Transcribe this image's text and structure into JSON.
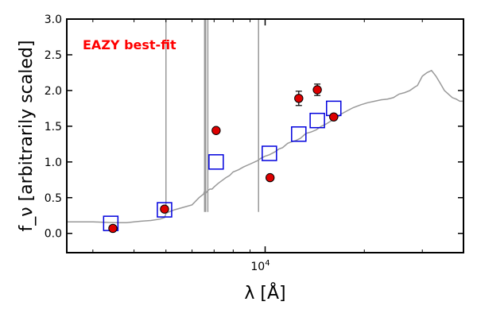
{
  "chart_data": {
    "type": "scatter",
    "title": "",
    "xlabel": "λ [Å]",
    "ylabel": "f_ν [arbitrarily scaled]",
    "xscale": "log",
    "xlim": [
      2500,
      40000
    ],
    "ylim": [
      -0.27,
      3.0
    ],
    "yticks": [
      0.0,
      0.5,
      1.0,
      1.5,
      2.0,
      2.5,
      3.0
    ],
    "ytick_labels": [
      "0.0",
      "0.5",
      "1.0",
      "1.5",
      "2.0",
      "2.5",
      "3.0"
    ],
    "xtick_major": [
      10000
    ],
    "xtick_major_label": "10^4",
    "annotation": "EAZY best-fit",
    "grid": false,
    "legend": "none",
    "colors": {
      "sed_line": "#999999",
      "observed_fill": "#dd0000",
      "model_box": "#0000dd",
      "annotation": "#ff0000"
    },
    "series": [
      {
        "kind": "line",
        "x": [
          2500,
          3000,
          3500,
          3800,
          4000,
          4200,
          4500,
          4800,
          4950,
          5000,
          5100,
          5300,
          5600,
          6000,
          6300,
          6500,
          6560,
          6600,
          6700,
          6800,
          6900,
          7000,
          7200,
          7400,
          7600,
          7800,
          8000,
          8300,
          8600,
          9000,
          9300,
          9500,
          9700,
          10000,
          10300,
          10700,
          11000,
          11300,
          11700,
          12000,
          12400,
          12800,
          13300,
          13800,
          14300,
          14800,
          15300,
          15800,
          16400,
          17000,
          17800,
          18500,
          19500,
          20500,
          21500,
          22500,
          23500,
          24500,
          25500,
          26500,
          27500,
          28500,
          29000,
          30000,
          31000,
          32000,
          33000,
          34000,
          35000,
          36000,
          37000,
          38000,
          39000,
          40000
        ],
        "y": [
          0.16,
          0.16,
          0.15,
          0.15,
          0.16,
          0.17,
          0.18,
          0.2,
          0.22,
          0.28,
          0.3,
          0.33,
          0.36,
          0.4,
          0.5,
          0.55,
          0.6,
          0.56,
          0.6,
          0.62,
          0.62,
          0.65,
          0.7,
          0.74,
          0.78,
          0.81,
          0.86,
          0.89,
          0.93,
          0.97,
          1.0,
          1.02,
          1.05,
          1.08,
          1.1,
          1.14,
          1.18,
          1.2,
          1.26,
          1.28,
          1.3,
          1.33,
          1.4,
          1.42,
          1.45,
          1.5,
          1.53,
          1.57,
          1.6,
          1.67,
          1.72,
          1.76,
          1.8,
          1.83,
          1.85,
          1.87,
          1.88,
          1.9,
          1.95,
          1.97,
          2.0,
          2.05,
          2.07,
          2.2,
          2.25,
          2.28,
          2.2,
          2.1,
          2.0,
          1.95,
          1.9,
          1.88,
          1.85,
          1.85
        ]
      },
      {
        "kind": "vlines",
        "x": [
          5000,
          6550,
          6600,
          6700,
          9550
        ],
        "y_from": 0.3,
        "y_to": 3.0
      },
      {
        "kind": "model-squares",
        "x": [
          3400,
          4950,
          7100,
          10300,
          12650,
          14400,
          16150
        ],
        "y": [
          0.14,
          0.33,
          1.0,
          1.12,
          1.39,
          1.58,
          1.75
        ]
      },
      {
        "kind": "observed-points",
        "x": [
          3450,
          4950,
          7100,
          10350,
          12650,
          14400,
          16150
        ],
        "y": [
          0.07,
          0.34,
          1.44,
          0.78,
          1.89,
          2.01,
          1.63
        ],
        "yerr": [
          0.0,
          0.0,
          0.0,
          0.0,
          0.1,
          0.08,
          0.0
        ]
      }
    ]
  }
}
